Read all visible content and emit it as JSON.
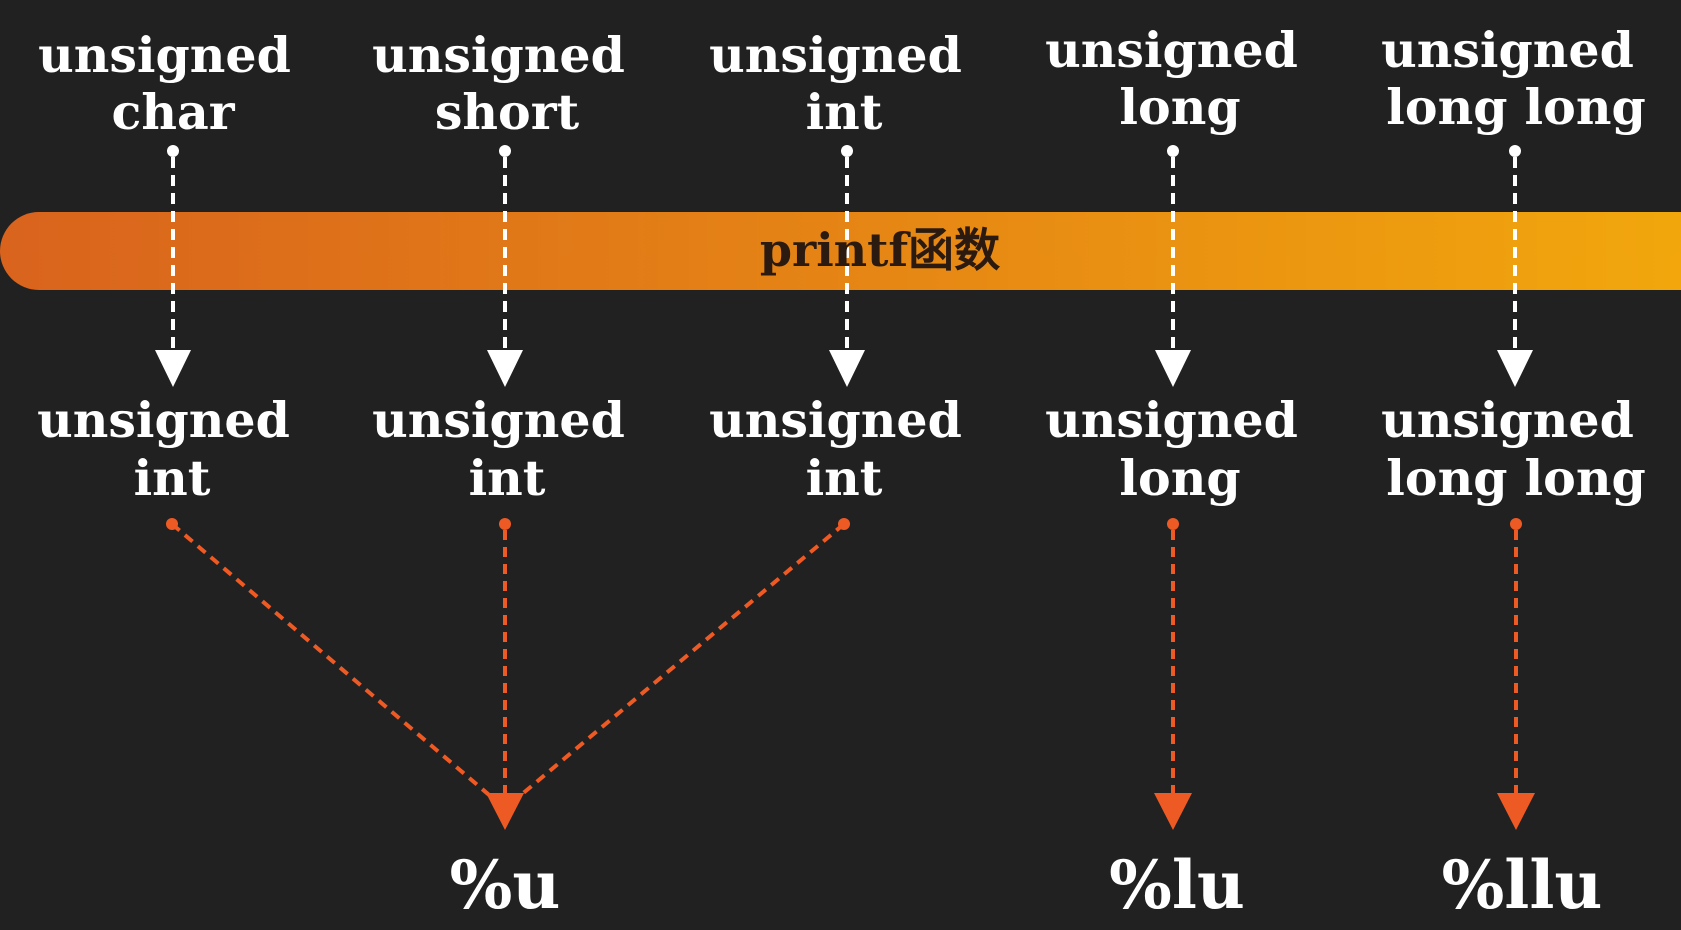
{
  "banner": {
    "label": "printf函数"
  },
  "source_types": [
    {
      "line1": "unsigned",
      "line2": "char"
    },
    {
      "line1": "unsigned",
      "line2": "short"
    },
    {
      "line1": "unsigned",
      "line2": "int"
    },
    {
      "line1": "unsigned",
      "line2": "long"
    },
    {
      "line1": "unsigned",
      "line2": "long long"
    }
  ],
  "promoted_types": [
    {
      "line1": "unsigned",
      "line2": "int"
    },
    {
      "line1": "unsigned",
      "line2": "int"
    },
    {
      "line1": "unsigned",
      "line2": "int"
    },
    {
      "line1": "unsigned",
      "line2": "long"
    },
    {
      "line1": "unsigned",
      "line2": "long long"
    }
  ],
  "format_specifiers": [
    {
      "label": "%u"
    },
    {
      "label": "%lu"
    },
    {
      "label": "%llu"
    }
  ],
  "colors": {
    "background": "#212121",
    "text": "#ffffff",
    "banner_start": "#d9631d",
    "banner_end": "#f2a80c",
    "promotion_arrow": "#ffffff",
    "specifier_arrow": "#ee5a24"
  }
}
